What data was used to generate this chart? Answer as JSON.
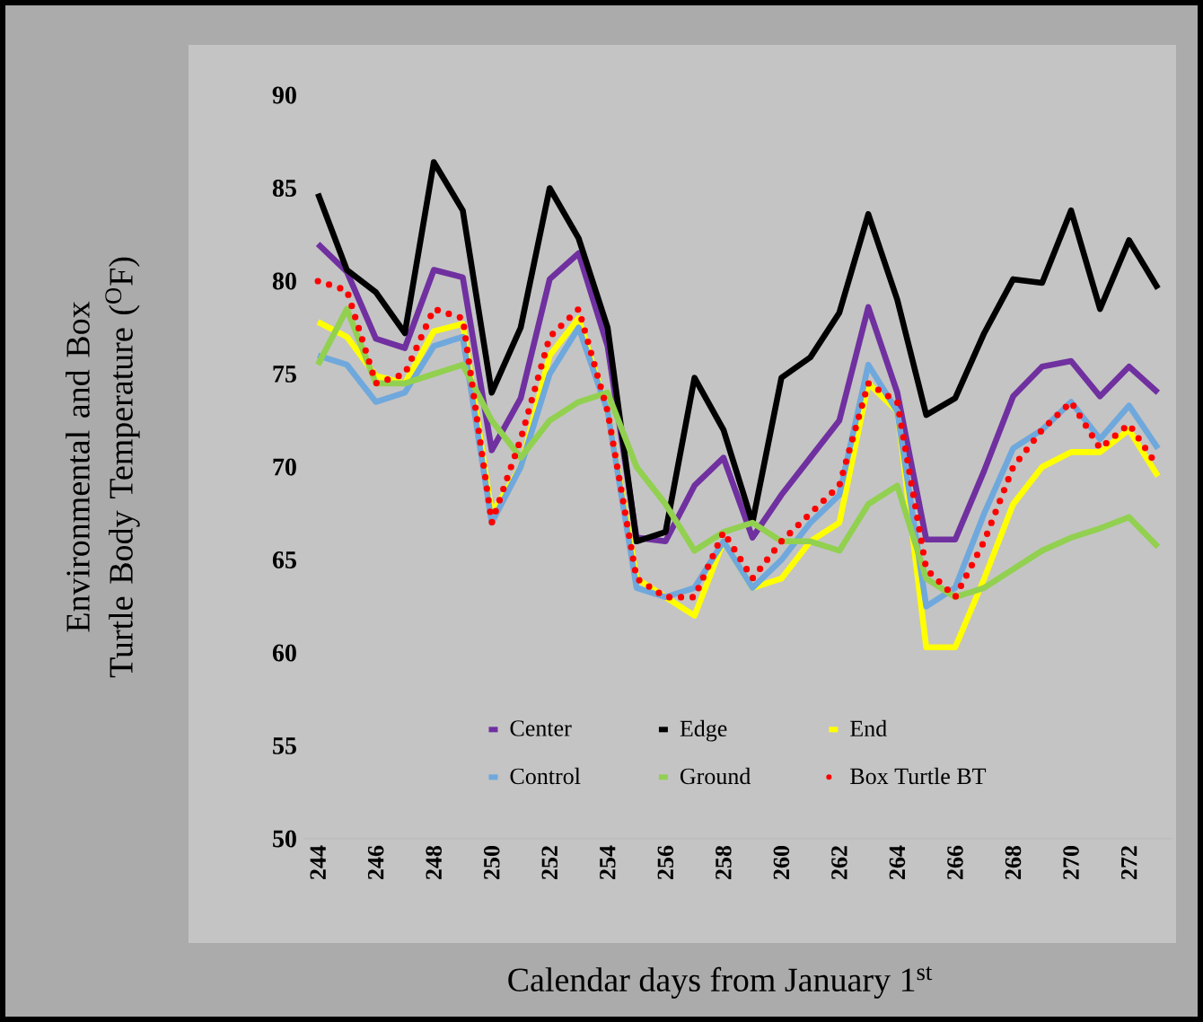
{
  "chart_data": {
    "type": "line",
    "xlabel": "Calendar days from January 1$^{st}$",
    "ylabel": "Environmental and Box Turtle Body Temperature ($^{O}$F)",
    "x": [
      244,
      245,
      246,
      247,
      248,
      249,
      250,
      251,
      252,
      253,
      254,
      255,
      256,
      257,
      258,
      259,
      260,
      261,
      262,
      263,
      264,
      265,
      266,
      267,
      268,
      269,
      270,
      271,
      272,
      273
    ],
    "xlim": [
      243.5,
      273.5
    ],
    "xticks": [
      244,
      246,
      248,
      250,
      252,
      254,
      256,
      258,
      260,
      262,
      264,
      266,
      268,
      270,
      272
    ],
    "ylim": [
      50,
      90
    ],
    "yticks": [
      50,
      55,
      60,
      65,
      70,
      75,
      80,
      85,
      90
    ],
    "legend": "bottom",
    "series": [
      {
        "name": "Center",
        "color": "#7030a0",
        "values": [
          82.0,
          80.5,
          76.9,
          76.4,
          80.6,
          80.2,
          70.9,
          73.7,
          80.1,
          81.5,
          76.5,
          66.2,
          66.0,
          69.0,
          70.5,
          66.2,
          68.5,
          70.5,
          72.5,
          78.6,
          74.0,
          66.1,
          66.1,
          69.8,
          73.8,
          75.4,
          75.7,
          73.8,
          75.4,
          74.0
        ]
      },
      {
        "name": "Edge",
        "color": "#000000",
        "values": [
          84.7,
          80.6,
          79.4,
          77.2,
          86.4,
          83.8,
          74.0,
          77.5,
          85.0,
          82.3,
          77.5,
          66.0,
          66.5,
          74.8,
          72.0,
          67.0,
          74.8,
          75.9,
          78.3,
          83.6,
          79.0,
          72.8,
          73.7,
          77.2,
          80.1,
          79.9,
          83.8,
          78.5,
          82.2,
          79.6
        ]
      },
      {
        "name": "End",
        "color": "#ffff00",
        "values": [
          77.8,
          77.0,
          74.9,
          74.5,
          77.3,
          77.7,
          67.5,
          70.0,
          76.0,
          78.0,
          73.0,
          64.0,
          63.0,
          62.0,
          66.0,
          63.5,
          64.0,
          66.0,
          67.0,
          74.5,
          73.0,
          60.3,
          60.3,
          64.0,
          68.0,
          70.0,
          70.8,
          70.8,
          72.0,
          69.5
        ]
      },
      {
        "name": "Control",
        "color": "#6fa8dc",
        "values": [
          76.0,
          75.5,
          73.5,
          74.0,
          76.5,
          77.0,
          67.0,
          70.0,
          75.0,
          77.5,
          73.0,
          63.5,
          63.0,
          63.5,
          66.0,
          63.5,
          65.0,
          67.0,
          68.5,
          75.5,
          73.0,
          62.5,
          63.5,
          67.5,
          71.0,
          72.0,
          73.5,
          71.5,
          73.3,
          71.0
        ]
      },
      {
        "name": "Ground",
        "color": "#92d050",
        "values": [
          75.5,
          78.5,
          74.5,
          74.5,
          75.0,
          75.5,
          72.5,
          70.5,
          72.5,
          73.5,
          74.0,
          70.0,
          68.0,
          65.5,
          66.5,
          67.0,
          66.0,
          66.0,
          65.5,
          68.0,
          69.0,
          64.0,
          63.0,
          63.5,
          64.5,
          65.5,
          66.2,
          66.7,
          67.3,
          65.7
        ]
      },
      {
        "name": "Box Turtle BT",
        "color": "#ff0000",
        "line_style": "dotted",
        "values": [
          80.0,
          79.5,
          74.5,
          75.0,
          78.5,
          78.0,
          67.0,
          71.5,
          77.0,
          78.5,
          73.0,
          64.0,
          63.0,
          63.0,
          66.5,
          64.0,
          66.0,
          67.5,
          69.0,
          74.5,
          73.5,
          64.5,
          63.0,
          66.0,
          70.0,
          72.0,
          73.5,
          71.0,
          72.3,
          70.0
        ]
      }
    ]
  }
}
